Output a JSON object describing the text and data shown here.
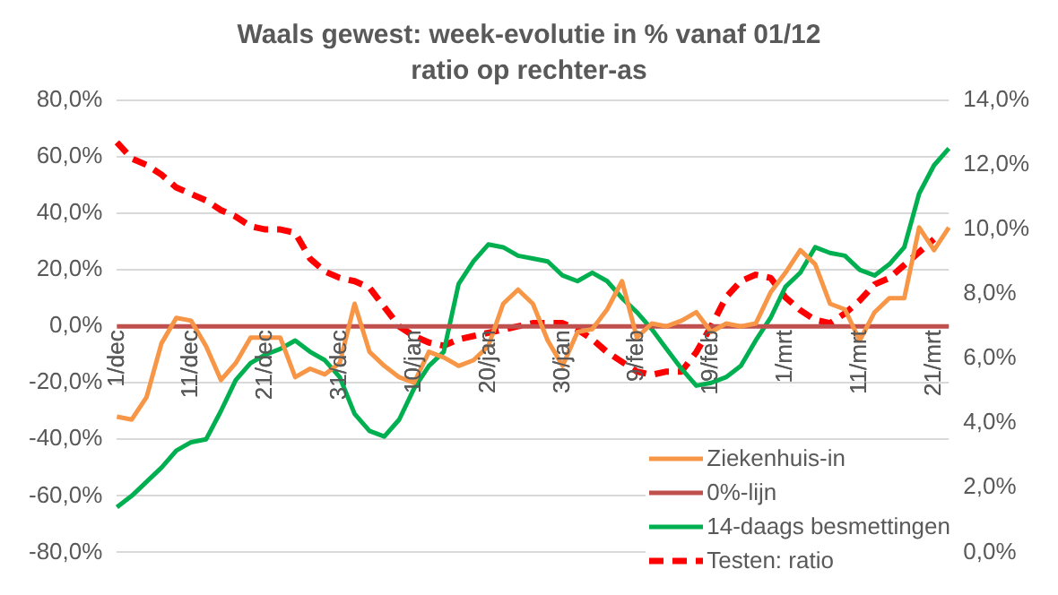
{
  "chart_data": {
    "type": "line",
    "title": "Waals gewest: week-evolutie in % vanaf 01/12",
    "subtitle": "ratio op rechter-as",
    "categories": [
      "1/dec",
      null,
      null,
      null,
      null,
      "11/dec",
      null,
      null,
      null,
      null,
      "21/dec",
      null,
      null,
      null,
      null,
      "31/dec",
      null,
      null,
      null,
      null,
      "10/jan",
      null,
      null,
      null,
      null,
      "20/jan",
      null,
      null,
      null,
      null,
      "30/jan",
      null,
      null,
      null,
      null,
      "9/feb",
      null,
      null,
      null,
      null,
      "19/feb",
      null,
      null,
      null,
      null,
      "1/mrt",
      null,
      null,
      null,
      null,
      "11/mrt",
      null,
      null,
      null,
      null,
      "21/mrt",
      null
    ],
    "series": [
      {
        "name": "Ziekenhuis-in",
        "color": "#f79646",
        "values": [
          -32,
          -33,
          -25,
          -6,
          3,
          2,
          -7,
          -19,
          -13,
          -4,
          -4,
          -4,
          -18,
          -15,
          -17,
          -13,
          8,
          -9,
          -14,
          -18,
          -20,
          -9,
          -11,
          -14,
          -12,
          -7,
          8,
          13,
          8,
          -5,
          -14,
          -2,
          -1,
          6,
          16,
          -4,
          1,
          0,
          2,
          5,
          -2,
          1,
          0,
          1,
          12,
          19,
          27,
          22,
          8,
          6,
          -5,
          5,
          10,
          10,
          35,
          27,
          35
        ]
      },
      {
        "name": "0%-lijn",
        "color": "#c0504d",
        "values": [
          0,
          0,
          0,
          0,
          0,
          0,
          0,
          0,
          0,
          0,
          0,
          0,
          0,
          0,
          0,
          0,
          0,
          0,
          0,
          0,
          0,
          0,
          0,
          0,
          0,
          0,
          0,
          0,
          0,
          0,
          0,
          0,
          0,
          0,
          0,
          0,
          0,
          0,
          0,
          0,
          0,
          0,
          0,
          0,
          0,
          0,
          0,
          0,
          0,
          0,
          0,
          0,
          0,
          0,
          0,
          0,
          0
        ]
      },
      {
        "name": "14-daags besmettingen",
        "color": "#00b050",
        "values": [
          -64,
          -60,
          -55,
          -50,
          -44,
          -41,
          -40,
          -30,
          -19,
          -13,
          -10,
          -8,
          -5,
          -9,
          -12,
          -18,
          -31,
          -37,
          -39,
          -33,
          -22,
          -14,
          -9,
          15,
          23,
          29,
          28,
          25,
          24,
          23,
          18,
          16,
          19,
          16,
          10,
          5,
          -1,
          -8,
          -15,
          -21,
          -20,
          -18,
          -14,
          -5,
          3,
          14,
          19,
          28,
          26,
          25,
          20,
          18,
          22,
          28,
          47,
          57,
          63
        ]
      },
      {
        "name": "Testen: ratio",
        "color": "#ff0000",
        "axis": "y2",
        "line_style": "dashed",
        "values": [
          12.7,
          12.2,
          12.0,
          11.7,
          11.3,
          11.1,
          10.9,
          10.6,
          10.4,
          10.1,
          10.0,
          10.0,
          9.9,
          9.1,
          8.7,
          8.5,
          8.4,
          8.2,
          7.6,
          7.0,
          6.7,
          6.5,
          6.4,
          6.6,
          6.7,
          6.8,
          6.9,
          7.0,
          7.1,
          7.1,
          7.1,
          6.9,
          6.6,
          6.2,
          5.9,
          5.6,
          5.5,
          5.6,
          5.6,
          6.2,
          7.0,
          7.9,
          8.4,
          8.6,
          8.5,
          7.9,
          7.5,
          7.2,
          7.1,
          7.4,
          7.8,
          8.3,
          8.5,
          8.9,
          9.3,
          9.7,
          null
        ]
      }
    ],
    "ylim": [
      -80,
      80
    ],
    "yticks": [
      {
        "value": -80,
        "label": "-80,0%"
      },
      {
        "value": -60,
        "label": "-60,0%"
      },
      {
        "value": -40,
        "label": "-40,0%"
      },
      {
        "value": -20,
        "label": "-20,0%"
      },
      {
        "value": 0,
        "label": "0,0%"
      },
      {
        "value": 20,
        "label": "20,0%"
      },
      {
        "value": 40,
        "label": "40,0%"
      },
      {
        "value": 60,
        "label": "60,0%"
      },
      {
        "value": 80,
        "label": "80,0%"
      }
    ],
    "y2lim": [
      0,
      14
    ],
    "y2ticks": [
      {
        "value": 0,
        "label": "0,0%"
      },
      {
        "value": 2,
        "label": "2,0%"
      },
      {
        "value": 4,
        "label": "4,0%"
      },
      {
        "value": 6,
        "label": "6,0%"
      },
      {
        "value": 8,
        "label": "8,0%"
      },
      {
        "value": 10,
        "label": "10,0%"
      },
      {
        "value": 12,
        "label": "12,0%"
      },
      {
        "value": 14,
        "label": "14,0%"
      }
    ],
    "grid": "y",
    "legend": "bottom right",
    "marker": "none"
  }
}
